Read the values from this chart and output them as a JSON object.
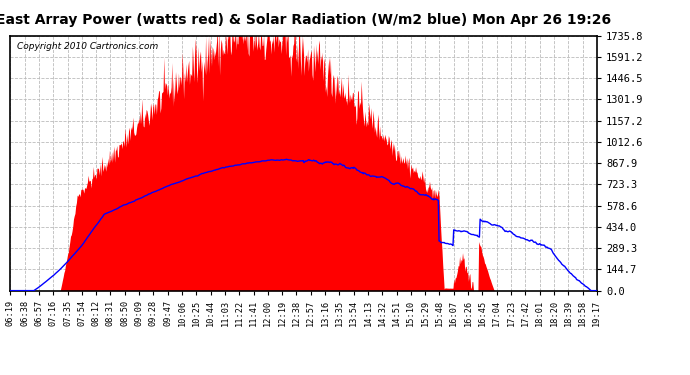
{
  "title": "East Array Power (watts red) & Solar Radiation (W/m2 blue) Mon Apr 26 19:26",
  "copyright_text": "Copyright 2010 Cartronics.com",
  "yticks": [
    0.0,
    144.7,
    289.3,
    434.0,
    578.6,
    723.3,
    867.9,
    1012.6,
    1157.2,
    1301.9,
    1446.5,
    1591.2,
    1735.8
  ],
  "ymax": 1735.8,
  "ymin": 0.0,
  "bg_color": "#ffffff",
  "plot_bg_color": "#ffffff",
  "fill_color": "#ff0000",
  "line_color": "#0000ff",
  "grid_color": "#bbbbbb",
  "title_fontsize": 10,
  "axis_fontsize": 7.5,
  "xtick_labels": [
    "06:19",
    "06:38",
    "06:57",
    "07:16",
    "07:35",
    "07:54",
    "08:12",
    "08:31",
    "08:50",
    "09:09",
    "09:28",
    "09:47",
    "10:06",
    "10:25",
    "10:44",
    "11:03",
    "11:22",
    "11:41",
    "12:00",
    "12:19",
    "12:38",
    "12:57",
    "13:16",
    "13:35",
    "13:54",
    "14:13",
    "14:32",
    "14:51",
    "15:10",
    "15:29",
    "15:48",
    "16:07",
    "16:26",
    "16:45",
    "17:04",
    "17:23",
    "17:42",
    "18:01",
    "18:20",
    "18:39",
    "18:58",
    "19:17"
  ]
}
